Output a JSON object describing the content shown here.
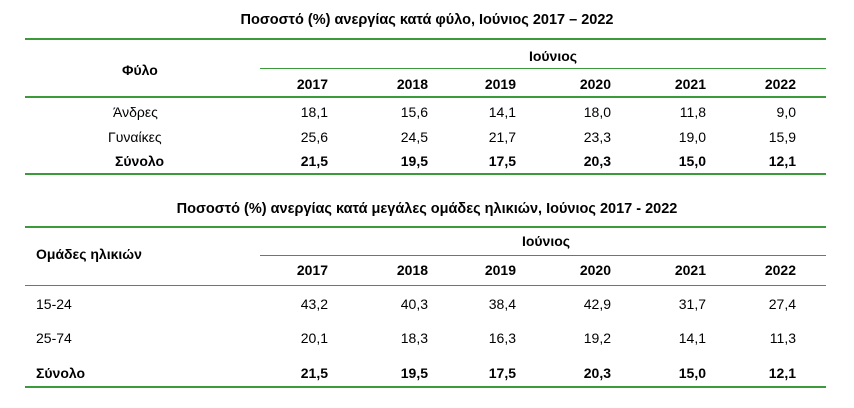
{
  "table1": {
    "title": "Ποσοστό (%) ανεργίας κατά φύλο, Ιούνιος 2017 – 2022",
    "row_header": "Φύλο",
    "group_header": "Ιούνιος",
    "years": [
      "2017",
      "2018",
      "2019",
      "2020",
      "2021",
      "2022"
    ],
    "rows": [
      {
        "label": "Άνδρες",
        "values": [
          "18,1",
          "15,6",
          "14,1",
          "18,0",
          "11,8",
          "9,0"
        ]
      },
      {
        "label": "Γυναίκες",
        "values": [
          "25,6",
          "24,5",
          "21,7",
          "23,3",
          "19,0",
          "15,9"
        ]
      },
      {
        "label": "Σύνολο",
        "values": [
          "21,5",
          "19,5",
          "17,5",
          "20,3",
          "15,0",
          "12,1"
        ]
      }
    ]
  },
  "table2": {
    "title": "Ποσοστό (%) ανεργίας κατά μεγάλες ομάδες ηλικιών, Ιούνιος 2017 - 2022",
    "row_header": "Ομάδες ηλικιών",
    "group_header": "Ιούνιος",
    "years": [
      "2017",
      "2018",
      "2019",
      "2020",
      "2021",
      "2022"
    ],
    "rows": [
      {
        "label": "15-24",
        "values": [
          "43,2",
          "40,3",
          "38,4",
          "42,9",
          "31,7",
          "27,4"
        ]
      },
      {
        "label": "25-74",
        "values": [
          "20,1",
          "18,3",
          "16,3",
          "19,2",
          "14,1",
          "11,3"
        ]
      },
      {
        "label": "Σύνολο",
        "values": [
          "21,5",
          "19,5",
          "17,5",
          "20,3",
          "15,0",
          "12,1"
        ]
      }
    ]
  },
  "colors": {
    "rule": "#3c9a3c"
  }
}
